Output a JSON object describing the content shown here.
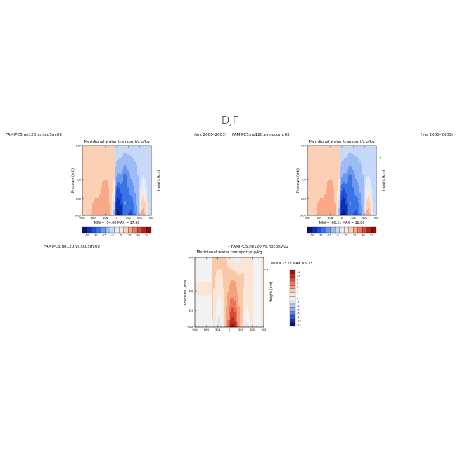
{
  "figure": {
    "title": "DJF"
  },
  "colors": {
    "diverging_main": [
      "#08107a",
      "#0b2fb0",
      "#1f4fd8",
      "#3a73e6",
      "#6a98ee",
      "#9dbcf3",
      "#c6d9f8",
      "#e1ecfb",
      "#fde8d8",
      "#fcd0b4",
      "#f8a886",
      "#f07a5c",
      "#dc4a34",
      "#b8221a",
      "#8a0f0a"
    ],
    "diverging_diff": [
      "#10106e",
      "#1b2fa3",
      "#2f56cc",
      "#5a82e0",
      "#8eaaea",
      "#bccdf2",
      "#dde6f7",
      "#f2f2f2",
      "#fbe6d6",
      "#f9c8a6",
      "#f3a07c",
      "#ea7656",
      "#d9483a",
      "#bd2a22",
      "#9c130f"
    ]
  },
  "panels": [
    {
      "id": "top-left",
      "left_title": "FAMIPC5.ne120.ys.tau5m.02",
      "center_title": "Meridional water transport/s g/kg",
      "right_title": "(yrs 2000–2003)",
      "min_max_text": "MIN = -54.00    MAX = 17.98"
    },
    {
      "id": "top-right",
      "left_title": "FAMIPC5.ne120.ys.noconv.02",
      "center_title": "Meridional water transport/s g/kg",
      "right_title": "(yrs 2000–2003)",
      "min_max_text": "MIN = -60.21    MAX = 18.86"
    },
    {
      "id": "bottom-diff",
      "left_title": "FAMIPC5.ne120.ys.tau5m.02",
      "center_title": "Meridional water transport/s g/kg",
      "right_title": "– FAMIPC5.ne120.ys.noconv.02",
      "min_max_text": "MIN = -3.23    MAX = 9.55"
    }
  ],
  "chart_data": [
    {
      "type": "heatmap",
      "panel": "top-left",
      "title": "Meridional water transport/s g/kg",
      "xlabel": "",
      "ylabel": "Pressure (mb)",
      "ylabel_right": "Height (km)",
      "x_ticks": [
        "90N",
        "60N",
        "30N",
        "0",
        "30S",
        "60S",
        "90S"
      ],
      "x_values": [
        90,
        60,
        30,
        0,
        -30,
        -60,
        -90
      ],
      "y_ticks": [
        500,
        700,
        850,
        1000
      ],
      "y_right_ticks": [
        4
      ],
      "xlim": [
        90,
        -90
      ],
      "ylim": [
        1000,
        500
      ],
      "colorbar": {
        "orientation": "horizontal",
        "labels": [
          "-50",
          "-30",
          "-15",
          "-5",
          "5",
          "15",
          "30",
          "50"
        ]
      },
      "min": -54.0,
      "max": 17.98
    },
    {
      "type": "heatmap",
      "panel": "top-right",
      "title": "Meridional water transport/s g/kg",
      "xlabel": "",
      "ylabel": "Pressure (mb)",
      "ylabel_right": "Height (km)",
      "x_ticks": [
        "90N",
        "60N",
        "30N",
        "0",
        "30S",
        "60S",
        "90S"
      ],
      "x_values": [
        90,
        60,
        30,
        0,
        -30,
        -60,
        -90
      ],
      "y_ticks": [
        500,
        700,
        850,
        1000
      ],
      "y_right_ticks": [
        4
      ],
      "xlim": [
        90,
        -90
      ],
      "ylim": [
        1000,
        500
      ],
      "colorbar": {
        "orientation": "horizontal",
        "labels": [
          "-50",
          "-30",
          "-15",
          "-5",
          "5",
          "15",
          "30",
          "50"
        ]
      },
      "min": -60.21,
      "max": 18.86
    },
    {
      "type": "heatmap",
      "panel": "bottom-diff",
      "title": "Meridional water transport/s g/kg",
      "xlabel": "",
      "ylabel": "Pressure (mb)",
      "ylabel_right": "Height (km)",
      "x_ticks": [
        "90N",
        "60N",
        "30N",
        "0",
        "30S",
        "60S",
        "90S"
      ],
      "x_values": [
        90,
        60,
        30,
        0,
        -30,
        -60,
        -90
      ],
      "y_ticks": [
        500,
        700,
        850,
        1000
      ],
      "y_right_ticks": [
        4
      ],
      "xlim": [
        90,
        -90
      ],
      "ylim": [
        1000,
        500
      ],
      "colorbar": {
        "orientation": "vertical",
        "labels": [
          "12",
          "10",
          "8",
          "6",
          "4",
          "2",
          "1",
          "0",
          "-1",
          "-2",
          "-4",
          "-6",
          "-8",
          "-10",
          "-12"
        ]
      },
      "min": -3.23,
      "max": 9.55
    }
  ]
}
